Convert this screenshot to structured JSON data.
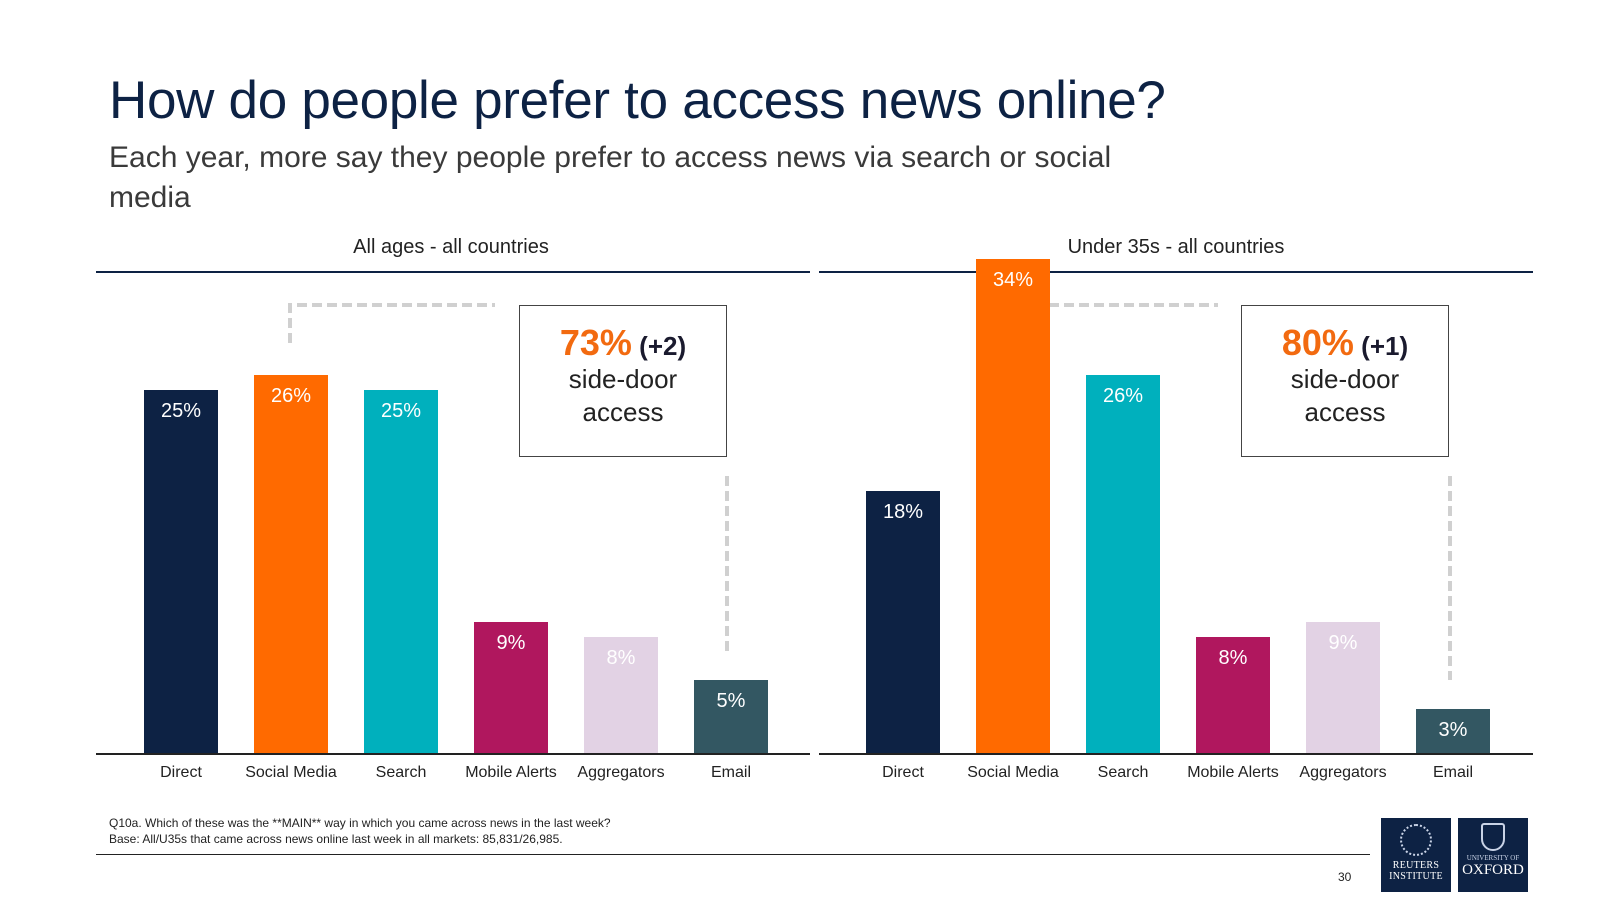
{
  "header": {
    "title": "How do people prefer to access news online?",
    "subtitle": "Each year, more say they people prefer to access news via search or social media"
  },
  "chart_data": [
    {
      "type": "bar",
      "title": "All ages - all countries",
      "categories": [
        "Direct",
        "Social Media",
        "Search",
        "Mobile Alerts",
        "Aggregators",
        "Email"
      ],
      "values": [
        25,
        26,
        25,
        9,
        8,
        5
      ],
      "value_labels": [
        "25%",
        "26%",
        "25%",
        "9%",
        "8%",
        "5%"
      ],
      "colors": [
        "#0d2244",
        "#ff6a00",
        "#00b0bd",
        "#b0175e",
        "#e2d2e4",
        "#335762"
      ],
      "ylim": [
        0,
        26
      ],
      "grid": false,
      "annotation": {
        "pct": "73%",
        "delta": "(+2)",
        "line1": "side-door",
        "line2": "access"
      }
    },
    {
      "type": "bar",
      "title": "Under 35s - all countries",
      "categories": [
        "Direct",
        "Social Media",
        "Search",
        "Mobile Alerts",
        "Aggregators",
        "Email"
      ],
      "values": [
        18,
        34,
        26,
        8,
        9,
        3
      ],
      "value_labels": [
        "18%",
        "34%",
        "26%",
        "8%",
        "9%",
        "3%"
      ],
      "colors": [
        "#0d2244",
        "#ff6a00",
        "#00b0bd",
        "#b0175e",
        "#e2d2e4",
        "#335762"
      ],
      "ylim": [
        0,
        34
      ],
      "grid": false,
      "annotation": {
        "pct": "80%",
        "delta": "(+1)",
        "line1": "side-door",
        "line2": "access"
      }
    }
  ],
  "footer": {
    "note_line1": "Q10a. Which of these was the **MAIN** way in which you came across news in the last week?",
    "note_line2": "Base: All/U35s that came across news online last week in all markets: 85,831/26,985.",
    "page_number": "30",
    "logo_reuters_line1": "REUTERS",
    "logo_reuters_line2": "INSTITUTE",
    "logo_oxford_line1": "UNIVERSITY OF",
    "logo_oxford_line2": "OXFORD"
  }
}
